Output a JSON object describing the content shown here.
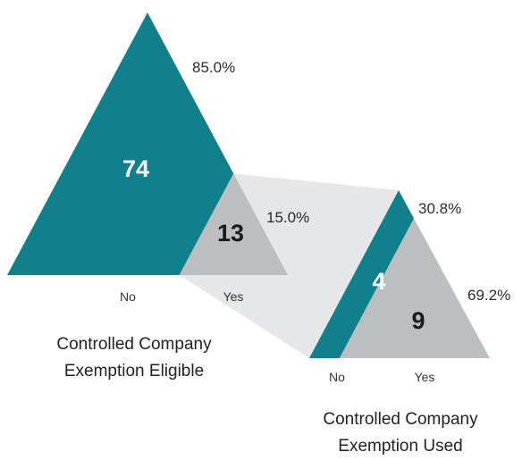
{
  "chart_data": {
    "type": "triangle-proportion",
    "colors": {
      "no": "#127f8c",
      "yes": "#bdbec0",
      "connector": "#e6e7e8",
      "text": "#2b2b2b"
    },
    "eligible": {
      "title_line1": "Controlled Company",
      "title_line2": "Exemption Eligible",
      "categories": [
        "No",
        "Yes"
      ],
      "values": [
        74,
        13
      ],
      "value_labels": [
        "74",
        "13"
      ],
      "percent_labels": [
        "85.0%",
        "15.0%"
      ]
    },
    "used": {
      "title_line1": "Controlled Company",
      "title_line2": "Exemption Used",
      "categories": [
        "No",
        "Yes"
      ],
      "values": [
        4,
        9
      ],
      "value_labels": [
        "4",
        "9"
      ],
      "percent_labels": [
        "30.8%",
        "69.2%"
      ]
    }
  }
}
